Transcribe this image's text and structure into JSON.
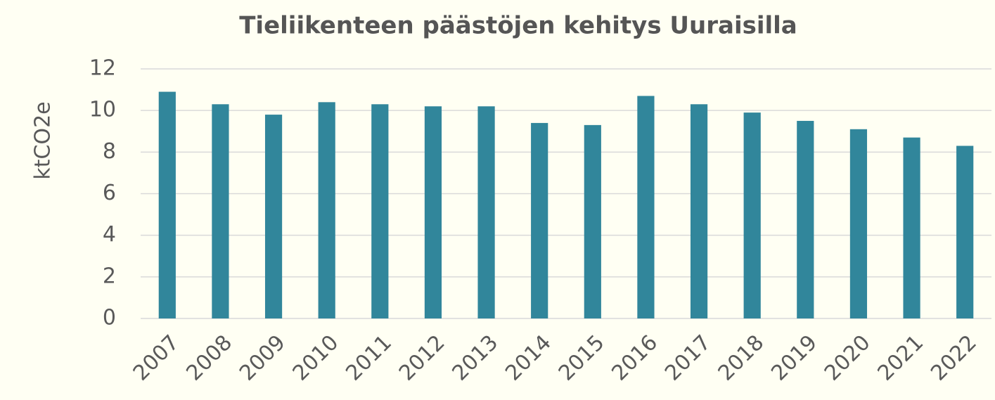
{
  "chart_data": {
    "type": "bar",
    "title": "Tieliikenteen päästöjen kehitys Uuraisilla",
    "y_label": "ktCO2e",
    "categories": [
      "2007",
      "2008",
      "2009",
      "2010",
      "2011",
      "2012",
      "2013",
      "2014",
      "2015",
      "2016",
      "2017",
      "2018",
      "2019",
      "2020",
      "2021",
      "2022"
    ],
    "values": [
      10.9,
      10.3,
      9.8,
      10.4,
      10.3,
      10.2,
      10.2,
      9.4,
      9.3,
      10.7,
      10.3,
      9.9,
      9.5,
      9.1,
      8.7,
      8.3
    ],
    "color": "#31869b",
    "ylim": [
      0,
      12
    ],
    "yticks": [
      0,
      2,
      4,
      6,
      8,
      10,
      12
    ],
    "grid": true
  }
}
